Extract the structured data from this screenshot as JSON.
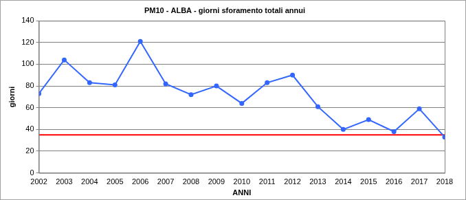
{
  "chart_data": {
    "type": "line",
    "title": "PM10 - ALBA - giorni sforamento totali annui",
    "x_label": "ANNI",
    "y_label": "giorni",
    "categories": [
      "2002",
      "2003",
      "2004",
      "2005",
      "2006",
      "2007",
      "2008",
      "2009",
      "2010",
      "2011",
      "2012",
      "2013",
      "2014",
      "2015",
      "2016",
      "2017",
      "2018"
    ],
    "series": [
      {
        "color": "#3366ff",
        "marker": "circle",
        "line_style": "solid",
        "values": [
          73,
          104,
          83,
          81,
          121,
          82,
          72,
          80,
          64,
          83,
          90,
          61,
          40,
          49,
          38,
          59,
          33
        ]
      },
      {
        "color": "#ff0000",
        "marker": "none",
        "line_style": "solid",
        "values": [
          35,
          35,
          35,
          35,
          35,
          35,
          35,
          35,
          35,
          35,
          35,
          35,
          35,
          35,
          35,
          35,
          35
        ]
      }
    ],
    "ylim": [
      0,
      140
    ],
    "yticks": [
      0,
      20,
      40,
      60,
      80,
      100,
      120,
      140
    ],
    "grid": true
  }
}
